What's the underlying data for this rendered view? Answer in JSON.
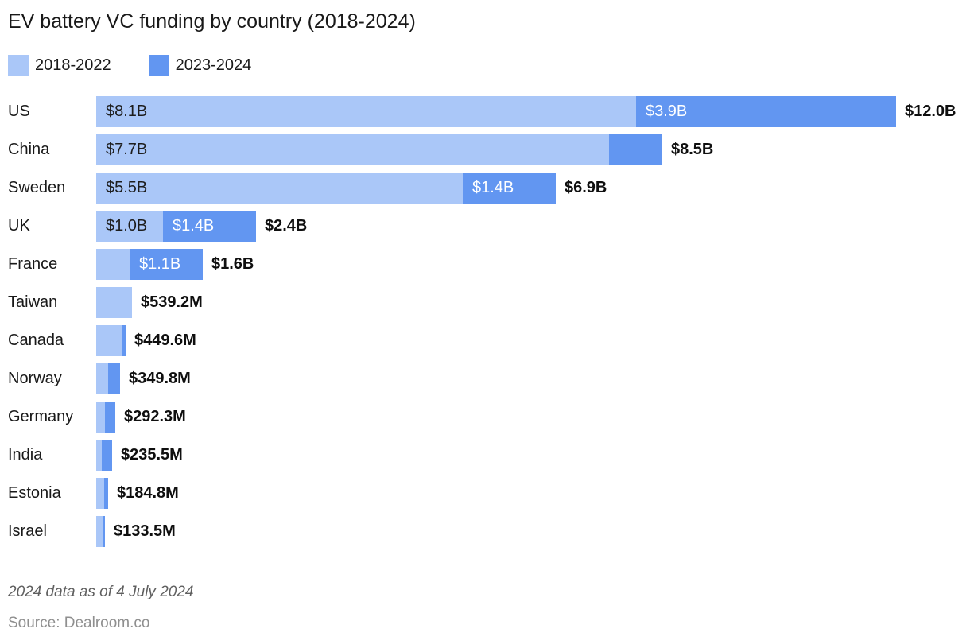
{
  "chart_data": {
    "type": "bar",
    "orientation": "horizontal",
    "stacked": true,
    "grid": false,
    "legend_position": "top-left",
    "title": "EV battery VC funding by country (2018-2024)",
    "footnote": "2024 data as of 4 July 2024",
    "source": "Source: Dealroom.co",
    "unit": "USD billions",
    "colors": {
      "period_2018_2022": "#aac7f8",
      "period_2023_2024": "#6296f1"
    },
    "legend": [
      {
        "label": "2018-2022",
        "color": "#aac7f8"
      },
      {
        "label": "2023-2024",
        "color": "#6296f1"
      }
    ],
    "categories": [
      "US",
      "China",
      "Sweden",
      "UK",
      "France",
      "Taiwan",
      "Canada",
      "Norway",
      "Germany",
      "India",
      "Estonia",
      "Israel"
    ],
    "series": [
      {
        "name": "2018-2022",
        "values": [
          8.1,
          7.7,
          5.5,
          1.0,
          0.5,
          0.5392,
          0.3996,
          0.175,
          0.132,
          0.078,
          0.12,
          0.0955
        ]
      },
      {
        "name": "2023-2024",
        "values": [
          3.9,
          0.8,
          1.4,
          1.4,
          1.1,
          0,
          0.05,
          0.1748,
          0.1603,
          0.1575,
          0.0648,
          0.038
        ]
      }
    ],
    "rows": [
      {
        "country": "US",
        "light_value": 8.1,
        "dark_value": 3.9,
        "light_label": "$8.1B",
        "dark_label": "$3.9B",
        "total_label": "$12.0B"
      },
      {
        "country": "China",
        "light_value": 7.7,
        "dark_value": 0.8,
        "light_label": "$7.7B",
        "dark_label": "",
        "total_label": "$8.5B"
      },
      {
        "country": "Sweden",
        "light_value": 5.5,
        "dark_value": 1.4,
        "light_label": "$5.5B",
        "dark_label": "$1.4B",
        "total_label": "$6.9B"
      },
      {
        "country": "UK",
        "light_value": 1.0,
        "dark_value": 1.4,
        "light_label": "$1.0B",
        "dark_label": "$1.4B",
        "total_label": "$2.4B"
      },
      {
        "country": "France",
        "light_value": 0.5,
        "dark_value": 1.1,
        "light_label": "",
        "dark_label": "$1.1B",
        "total_label": "$1.6B"
      },
      {
        "country": "Taiwan",
        "light_value": 0.5392,
        "dark_value": 0,
        "light_label": "",
        "dark_label": "",
        "total_label": "$539.2M"
      },
      {
        "country": "Canada",
        "light_value": 0.3996,
        "dark_value": 0.05,
        "light_label": "",
        "dark_label": "",
        "total_label": "$449.6M"
      },
      {
        "country": "Norway",
        "light_value": 0.175,
        "dark_value": 0.1748,
        "light_label": "",
        "dark_label": "",
        "total_label": "$349.8M"
      },
      {
        "country": "Germany",
        "light_value": 0.132,
        "dark_value": 0.1603,
        "light_label": "",
        "dark_label": "",
        "total_label": "$292.3M"
      },
      {
        "country": "India",
        "light_value": 0.078,
        "dark_value": 0.1575,
        "light_label": "",
        "dark_label": "",
        "total_label": "$235.5M"
      },
      {
        "country": "Estonia",
        "light_value": 0.12,
        "dark_value": 0.0648,
        "light_label": "",
        "dark_label": "",
        "total_label": "$184.8M"
      },
      {
        "country": "Israel",
        "light_value": 0.0955,
        "dark_value": 0.038,
        "light_label": "",
        "dark_label": "",
        "total_label": "$133.5M"
      }
    ]
  }
}
